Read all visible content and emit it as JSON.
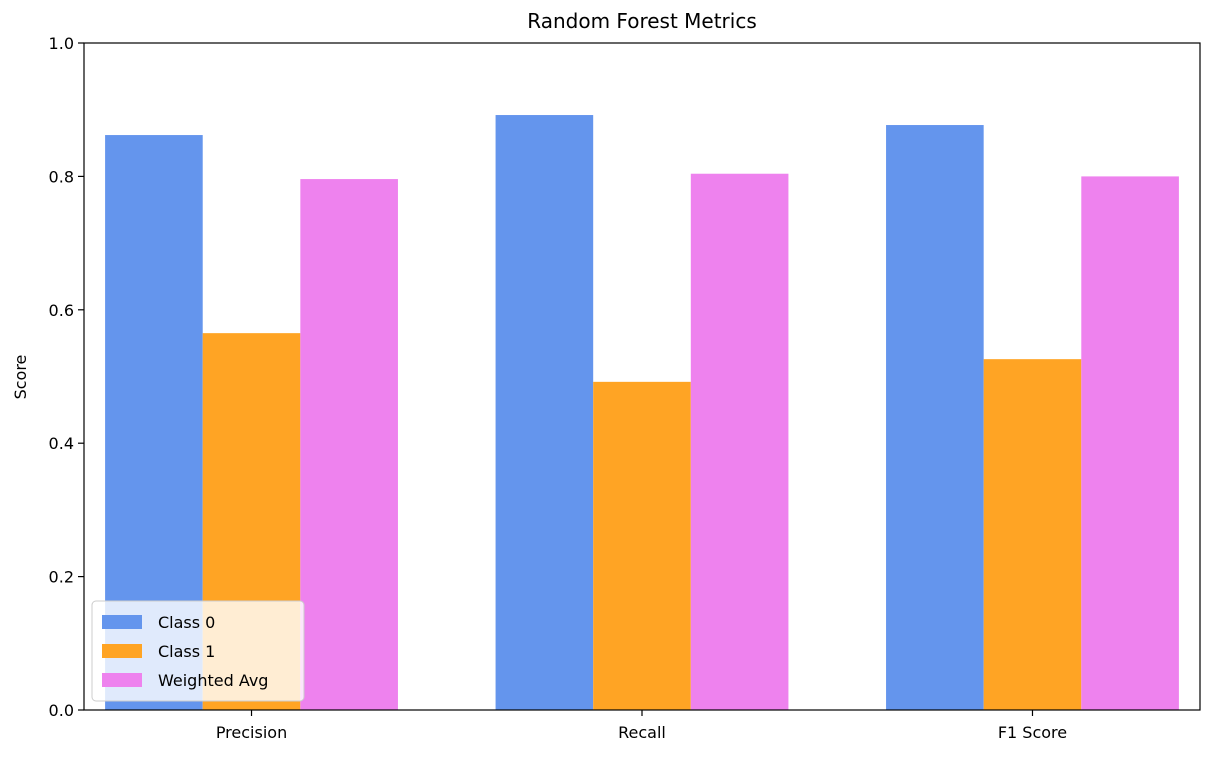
{
  "chart_data": {
    "type": "bar",
    "title": "Random Forest Metrics",
    "xlabel": "",
    "ylabel": "Score",
    "categories": [
      "Precision",
      "Recall",
      "F1 Score"
    ],
    "series": [
      {
        "name": "Class 0",
        "color": "#6495ED",
        "values": [
          0.862,
          0.892,
          0.877
        ]
      },
      {
        "name": "Class 1",
        "color": "#FFA424",
        "values": [
          0.565,
          0.492,
          0.526
        ]
      },
      {
        "name": "Weighted Avg",
        "color": "#EE82EE",
        "values": [
          0.796,
          0.804,
          0.8
        ]
      }
    ],
    "ylim": [
      0,
      1.0
    ],
    "yticks": [
      "0.0",
      "0.2",
      "0.4",
      "0.6",
      "0.8",
      "1.0"
    ],
    "grid": false,
    "legend_position": "lower-left"
  }
}
